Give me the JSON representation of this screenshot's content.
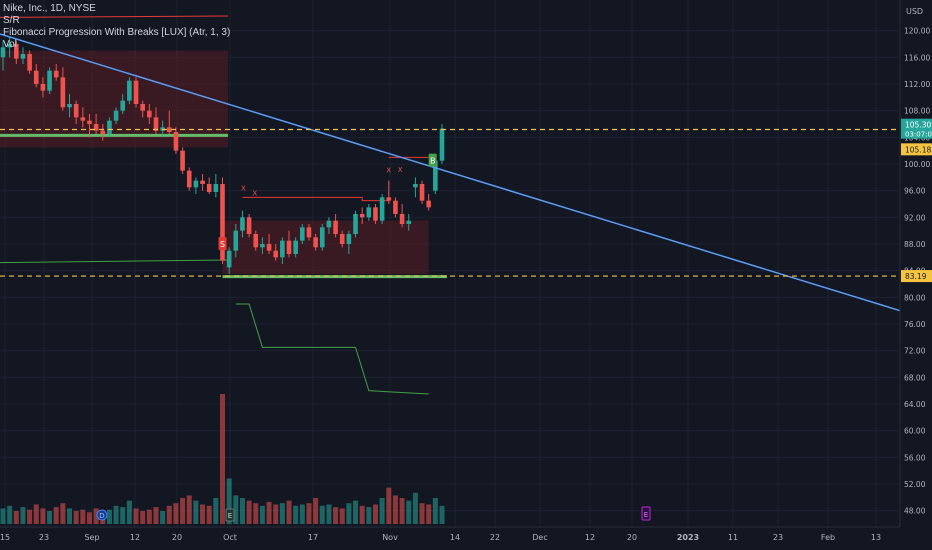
{
  "legend": {
    "symbol": "Nike, Inc., 1D, NYSE",
    "indicator1": "S/R",
    "indicator2": "Fibonacci Progression With Breaks [LUX] (Atr, 1, 3)",
    "indicator3": "Vol"
  },
  "price_axis": {
    "currency": "USD",
    "ticks": [
      "120.00",
      "116.00",
      "112.00",
      "108.00",
      "104.00",
      "100.00",
      "96.00",
      "92.00",
      "88.00",
      "84.00",
      "80.00",
      "76.00",
      "72.00",
      "68.00",
      "64.00",
      "60.00",
      "56.00",
      "52.00",
      "48.00"
    ],
    "last_price": "105.30",
    "countdown": "03:07:08",
    "prev_label": "105.18",
    "support_label": "83.19"
  },
  "time_axis": [
    "15",
    "23",
    "Sep",
    "12",
    "20",
    "Oct",
    "17",
    "Nov",
    "14",
    "22",
    "Dec",
    "12",
    "20",
    "2023",
    "11",
    "23",
    "Feb",
    "13"
  ],
  "markers": {
    "sell": "S",
    "buy": "B",
    "cross": "X",
    "flag_earnings": "E",
    "flag_dividend": "D"
  },
  "colors": {
    "up": "#26a69a",
    "down": "#ef5350",
    "trend": "#5b9cf6",
    "dashed": "#f5c542",
    "support": "#4caf50"
  },
  "chart_data": {
    "type": "candlestick",
    "title": "Nike, Inc., 1D, NYSE",
    "ylim": [
      46,
      124
    ],
    "candles": [
      {
        "date": "Aug 15",
        "o": 116.0,
        "h": 118.5,
        "l": 114.0,
        "c": 117.5
      },
      {
        "date": "Aug 16",
        "o": 117.5,
        "h": 119.0,
        "l": 116.0,
        "c": 118.0
      },
      {
        "date": "Aug 17",
        "o": 118.0,
        "h": 118.5,
        "l": 115.0,
        "c": 115.8
      },
      {
        "date": "Aug 18",
        "o": 115.8,
        "h": 117.5,
        "l": 115.0,
        "c": 116.5
      },
      {
        "date": "Aug 19",
        "o": 116.5,
        "h": 117.0,
        "l": 113.5,
        "c": 114.0
      },
      {
        "date": "Aug 22",
        "o": 114.0,
        "h": 115.0,
        "l": 111.5,
        "c": 112.0
      },
      {
        "date": "Aug 23",
        "o": 112.0,
        "h": 113.0,
        "l": 110.0,
        "c": 111.0
      },
      {
        "date": "Aug 24",
        "o": 111.0,
        "h": 114.5,
        "l": 110.5,
        "c": 114.0
      },
      {
        "date": "Aug 25",
        "o": 114.0,
        "h": 115.0,
        "l": 112.5,
        "c": 113.0
      },
      {
        "date": "Aug 26",
        "o": 113.0,
        "h": 114.5,
        "l": 108.0,
        "c": 108.5
      },
      {
        "date": "Aug 29",
        "o": 108.5,
        "h": 110.5,
        "l": 107.0,
        "c": 109.0
      },
      {
        "date": "Aug 30",
        "o": 109.0,
        "h": 109.5,
        "l": 106.0,
        "c": 107.0
      },
      {
        "date": "Aug 31",
        "o": 107.0,
        "h": 108.5,
        "l": 105.5,
        "c": 106.5
      },
      {
        "date": "Sep 1",
        "o": 106.5,
        "h": 107.5,
        "l": 104.0,
        "c": 106.0
      },
      {
        "date": "Sep 2",
        "o": 106.0,
        "h": 107.5,
        "l": 104.5,
        "c": 105.0
      },
      {
        "date": "Sep 6",
        "o": 105.0,
        "h": 106.0,
        "l": 103.5,
        "c": 104.5
      },
      {
        "date": "Sep 7",
        "o": 104.5,
        "h": 107.0,
        "l": 104.0,
        "c": 106.5
      },
      {
        "date": "Sep 8",
        "o": 106.5,
        "h": 108.5,
        "l": 106.0,
        "c": 108.0
      },
      {
        "date": "Sep 9",
        "o": 108.0,
        "h": 110.5,
        "l": 107.5,
        "c": 109.5
      },
      {
        "date": "Sep 12",
        "o": 109.5,
        "h": 113.0,
        "l": 109.0,
        "c": 112.5
      },
      {
        "date": "Sep 13",
        "o": 112.5,
        "h": 113.0,
        "l": 108.5,
        "c": 109.0
      },
      {
        "date": "Sep 14",
        "o": 109.0,
        "h": 109.5,
        "l": 107.0,
        "c": 108.0
      },
      {
        "date": "Sep 15",
        "o": 108.0,
        "h": 109.0,
        "l": 106.0,
        "c": 107.0
      },
      {
        "date": "Sep 16",
        "o": 107.0,
        "h": 108.5,
        "l": 104.5,
        "c": 105.0
      },
      {
        "date": "Sep 19",
        "o": 105.0,
        "h": 106.5,
        "l": 104.0,
        "c": 105.5
      },
      {
        "date": "Sep 20",
        "o": 105.5,
        "h": 108.0,
        "l": 104.5,
        "c": 104.8
      },
      {
        "date": "Sep 21",
        "o": 104.8,
        "h": 105.5,
        "l": 101.5,
        "c": 102.0
      },
      {
        "date": "Sep 22",
        "o": 102.0,
        "h": 102.5,
        "l": 98.5,
        "c": 99.0
      },
      {
        "date": "Sep 23",
        "o": 99.0,
        "h": 99.5,
        "l": 96.0,
        "c": 96.5
      },
      {
        "date": "Sep 26",
        "o": 96.5,
        "h": 98.0,
        "l": 95.5,
        "c": 97.5
      },
      {
        "date": "Sep 27",
        "o": 97.5,
        "h": 98.5,
        "l": 96.0,
        "c": 97.0
      },
      {
        "date": "Sep 28",
        "o": 97.0,
        "h": 98.0,
        "l": 95.5,
        "c": 95.8
      },
      {
        "date": "Sep 29",
        "o": 95.8,
        "h": 98.5,
        "l": 95.0,
        "c": 97.0
      },
      {
        "date": "Sep 30",
        "o": 97.0,
        "h": 98.0,
        "l": 85.0,
        "c": 85.5
      },
      {
        "date": "Oct 3",
        "o": 84.5,
        "h": 87.5,
        "l": 83.5,
        "c": 87.0
      },
      {
        "date": "Oct 4",
        "o": 87.0,
        "h": 91.0,
        "l": 86.0,
        "c": 90.0
      },
      {
        "date": "Oct 5",
        "o": 90.0,
        "h": 93.0,
        "l": 89.0,
        "c": 92.0
      },
      {
        "date": "Oct 6",
        "o": 92.0,
        "h": 92.5,
        "l": 89.0,
        "c": 89.5
      },
      {
        "date": "Oct 7",
        "o": 89.5,
        "h": 90.0,
        "l": 87.0,
        "c": 87.5
      },
      {
        "date": "Oct 10",
        "o": 87.5,
        "h": 89.0,
        "l": 86.5,
        "c": 88.0
      },
      {
        "date": "Oct 11",
        "o": 88.0,
        "h": 89.5,
        "l": 86.5,
        "c": 87.0
      },
      {
        "date": "Oct 12",
        "o": 87.0,
        "h": 88.0,
        "l": 85.5,
        "c": 86.0
      },
      {
        "date": "Oct 13",
        "o": 86.0,
        "h": 89.0,
        "l": 85.0,
        "c": 88.5
      },
      {
        "date": "Oct 14",
        "o": 88.5,
        "h": 90.0,
        "l": 86.0,
        "c": 86.5
      },
      {
        "date": "Oct 17",
        "o": 86.5,
        "h": 89.0,
        "l": 86.0,
        "c": 88.5
      },
      {
        "date": "Oct 18",
        "o": 88.5,
        "h": 91.0,
        "l": 88.0,
        "c": 90.5
      },
      {
        "date": "Oct 19",
        "o": 90.5,
        "h": 91.0,
        "l": 88.5,
        "c": 89.0
      },
      {
        "date": "Oct 20",
        "o": 89.0,
        "h": 89.5,
        "l": 87.0,
        "c": 87.5
      },
      {
        "date": "Oct 21",
        "o": 87.5,
        "h": 91.0,
        "l": 87.0,
        "c": 90.5
      },
      {
        "date": "Oct 24",
        "o": 90.5,
        "h": 92.0,
        "l": 89.5,
        "c": 91.5
      },
      {
        "date": "Oct 25",
        "o": 91.5,
        "h": 92.5,
        "l": 89.0,
        "c": 89.5
      },
      {
        "date": "Oct 26",
        "o": 89.5,
        "h": 90.0,
        "l": 87.5,
        "c": 88.0
      },
      {
        "date": "Oct 27",
        "o": 88.0,
        "h": 90.0,
        "l": 86.5,
        "c": 89.5
      },
      {
        "date": "Oct 28",
        "o": 89.5,
        "h": 93.0,
        "l": 89.0,
        "c": 92.5
      },
      {
        "date": "Oct 31",
        "o": 92.5,
        "h": 93.5,
        "l": 91.0,
        "c": 92.0
      },
      {
        "date": "Nov 1",
        "o": 92.0,
        "h": 94.0,
        "l": 91.5,
        "c": 93.5
      },
      {
        "date": "Nov 2",
        "o": 93.5,
        "h": 94.0,
        "l": 91.0,
        "c": 91.5
      },
      {
        "date": "Nov 3",
        "o": 91.5,
        "h": 95.5,
        "l": 91.0,
        "c": 95.0
      },
      {
        "date": "Nov 4",
        "o": 95.0,
        "h": 97.5,
        "l": 94.0,
        "c": 94.5
      },
      {
        "date": "Nov 7",
        "o": 94.5,
        "h": 95.0,
        "l": 92.0,
        "c": 92.5
      },
      {
        "date": "Nov 8",
        "o": 92.5,
        "h": 94.0,
        "l": 90.5,
        "c": 91.0
      },
      {
        "date": "Nov 9",
        "o": 91.0,
        "h": 92.5,
        "l": 90.0,
        "c": 91.5
      },
      {
        "date": "Nov 10",
        "o": 96.5,
        "h": 98.0,
        "l": 95.0,
        "c": 97.0
      },
      {
        "date": "Nov 11",
        "o": 97.0,
        "h": 97.5,
        "l": 94.0,
        "c": 94.5
      },
      {
        "date": "Nov 14",
        "o": 94.5,
        "h": 95.5,
        "l": 93.0,
        "c": 93.5
      },
      {
        "date": "Nov 15",
        "o": 96.0,
        "h": 101.5,
        "l": 95.5,
        "c": 100.5
      },
      {
        "date": "Nov 16",
        "o": 100.5,
        "h": 106.0,
        "l": 100.0,
        "c": 105.3
      }
    ],
    "volume_relative": [
      0.12,
      0.14,
      0.1,
      0.13,
      0.11,
      0.15,
      0.12,
      0.1,
      0.13,
      0.16,
      0.12,
      0.1,
      0.11,
      0.09,
      0.12,
      0.1,
      0.11,
      0.14,
      0.13,
      0.18,
      0.12,
      0.1,
      0.11,
      0.13,
      0.1,
      0.14,
      0.16,
      0.2,
      0.22,
      0.18,
      0.15,
      0.14,
      0.2,
      1.0,
      0.35,
      0.22,
      0.2,
      0.18,
      0.16,
      0.14,
      0.17,
      0.15,
      0.16,
      0.18,
      0.14,
      0.15,
      0.16,
      0.2,
      0.14,
      0.15,
      0.13,
      0.12,
      0.16,
      0.18,
      0.14,
      0.13,
      0.15,
      0.2,
      0.28,
      0.22,
      0.2,
      0.18,
      0.24,
      0.16,
      0.15,
      0.2,
      0.14
    ],
    "levels": {
      "support": 83.19,
      "resistance": 105.18,
      "last": 105.3
    }
  }
}
